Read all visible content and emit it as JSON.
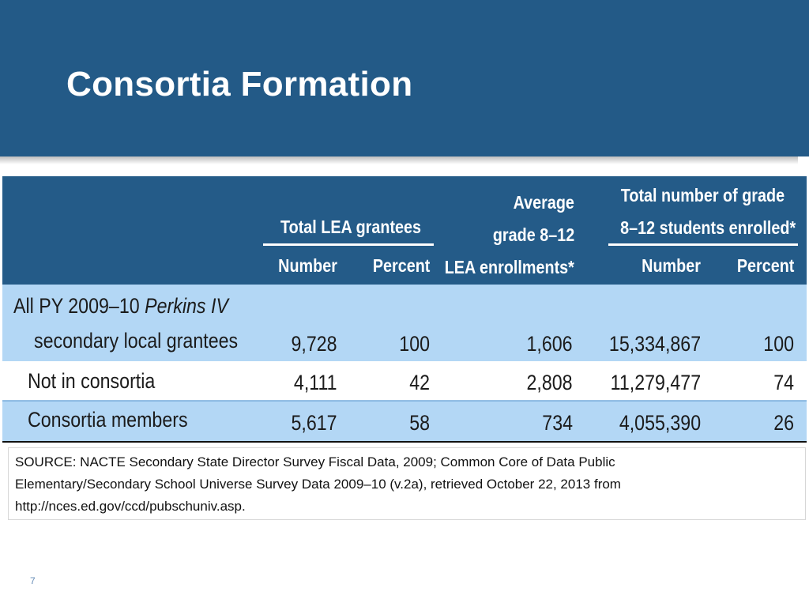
{
  "slide": {
    "title": "Consortia Formation",
    "page_number": "7"
  },
  "table": {
    "headers": {
      "total_lea_grantees": "Total LEA grantees",
      "average_line1": "Average",
      "average_line2": "grade 8–12",
      "average_line3": "LEA enrollments*",
      "total_students_line1": "Total number of grade",
      "total_students_line2": "8–12 students enrolled*",
      "number": "Number",
      "percent": "Percent"
    },
    "rows": [
      {
        "label_line1_prefix": "All PY 2009–10 ",
        "label_line1_italic": "Perkins IV",
        "label_line2": "secondary local grantees",
        "lea_number": "9,728",
        "lea_percent": "100",
        "avg_enrollment": "1,606",
        "students_number": "15,334,867",
        "students_percent": "100"
      },
      {
        "label": "Not in consortia",
        "lea_number": "4,111",
        "lea_percent": "42",
        "avg_enrollment": "2,808",
        "students_number": "11,279,477",
        "students_percent": "74"
      },
      {
        "label": "Consortia members",
        "lea_number": "5,617",
        "lea_percent": "58",
        "avg_enrollment": "734",
        "students_number": "4,055,390",
        "students_percent": "26"
      }
    ]
  },
  "source": {
    "line1": "SOURCE: NACTE Secondary State Director Survey Fiscal Data, 2009; Common Core of Data Public",
    "line2": "Elementary/Secondary School Universe Survey Data 2009–10 (v.2a), retrieved October 22, 2013 from",
    "line3": "http://nces.ed.gov/ccd/pubschuniv.asp."
  },
  "colors": {
    "title_bar": "#235a87",
    "header_bg": "#245b88",
    "highlight_row": "#b3d7f5"
  }
}
